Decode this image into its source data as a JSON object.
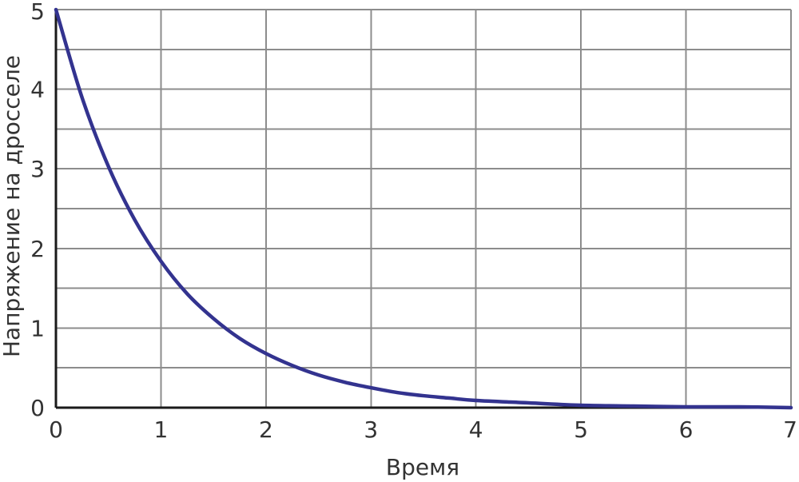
{
  "chart_data": {
    "type": "line",
    "xlabel": "Время",
    "ylabel": "Напряжение на дросселе",
    "xlim": [
      0,
      7
    ],
    "ylim": [
      0,
      5
    ],
    "x_ticks": [
      "0",
      "1",
      "2",
      "3",
      "4",
      "5",
      "6",
      "7"
    ],
    "y_ticks": [
      "0",
      "1",
      "2",
      "3",
      "4",
      "5"
    ],
    "grid": true,
    "series": [
      {
        "color": "#33338f",
        "x": [
          0,
          0.25,
          0.5,
          0.75,
          1,
          1.25,
          1.5,
          1.75,
          2,
          2.25,
          2.5,
          2.75,
          3,
          3.25,
          3.5,
          3.75,
          4,
          4.5,
          5,
          5.5,
          6,
          6.5,
          7
        ],
        "y": [
          5,
          3.89,
          3.03,
          2.36,
          1.84,
          1.43,
          1.12,
          0.87,
          0.68,
          0.53,
          0.41,
          0.32,
          0.25,
          0.19,
          0.15,
          0.12,
          0.09,
          0.06,
          0.03,
          0.02,
          0.01,
          0.01,
          0.0
        ]
      }
    ]
  }
}
